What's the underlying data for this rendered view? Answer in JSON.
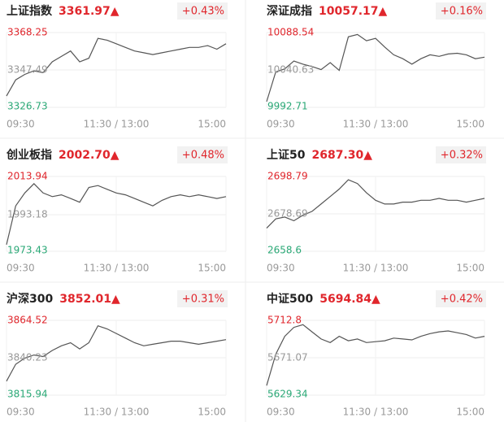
{
  "chart_data": [
    {
      "type": "line",
      "title": "上证指数",
      "price": "3361.97▲",
      "change": "+0.43%",
      "color": "#555555",
      "x": [
        0,
        10,
        20,
        30,
        40,
        50,
        60,
        70,
        80,
        90,
        100,
        110,
        120,
        130,
        140,
        150,
        160,
        170,
        180,
        190,
        200,
        210,
        220,
        230,
        240
      ],
      "values": [
        3333,
        3342,
        3345,
        3347,
        3346,
        3352,
        3355,
        3358,
        3352,
        3354,
        3365,
        3364,
        3362,
        3360,
        3358,
        3357,
        3356,
        3357,
        3358,
        3359,
        3360,
        3360,
        3361,
        3359,
        3362
      ],
      "xlim": [
        0,
        240
      ],
      "xticks": [
        {
          "value": 0,
          "label": "09:30"
        },
        {
          "value": 120,
          "label": "11:30 / 13:00"
        },
        {
          "value": 240,
          "label": "15:00"
        }
      ],
      "ylim": [
        3326.73,
        3368.25
      ],
      "yticks": [
        3326.73,
        3347.49,
        3368.25
      ],
      "grid": true
    },
    {
      "type": "line",
      "title": "深证成指",
      "price": "10057.17▲",
      "change": "+0.16%",
      "color": "#555555",
      "x": [
        0,
        10,
        20,
        30,
        40,
        50,
        60,
        70,
        80,
        90,
        100,
        110,
        120,
        130,
        140,
        150,
        160,
        170,
        180,
        190,
        200,
        210,
        220,
        230,
        240
      ],
      "values": [
        10000,
        10038,
        10042,
        10052,
        10048,
        10045,
        10041,
        10050,
        10040,
        10083,
        10086,
        10078,
        10081,
        10070,
        10060,
        10055,
        10048,
        10055,
        10060,
        10058,
        10061,
        10062,
        10060,
        10055,
        10057
      ],
      "xlim": [
        0,
        240
      ],
      "xticks": [
        {
          "value": 0,
          "label": "09:30"
        },
        {
          "value": 120,
          "label": "11:30 / 13:00"
        },
        {
          "value": 240,
          "label": "15:00"
        }
      ],
      "ylim": [
        9992.71,
        10088.54
      ],
      "yticks": [
        9992.71,
        10040.63,
        10088.54
      ],
      "grid": true
    },
    {
      "type": "line",
      "title": "创业板指",
      "price": "2002.70▲",
      "change": "+0.48%",
      "color": "#555555",
      "x": [
        0,
        10,
        20,
        30,
        40,
        50,
        60,
        70,
        80,
        90,
        100,
        110,
        120,
        130,
        140,
        150,
        160,
        170,
        180,
        190,
        200,
        210,
        220,
        230,
        240
      ],
      "values": [
        1977,
        1998,
        2005,
        2010,
        2005,
        2003,
        2004,
        2002,
        2000,
        2008,
        2009,
        2007,
        2005,
        2004,
        2002,
        2000,
        1998,
        2001,
        2003,
        2004,
        2003,
        2004,
        2003,
        2002,
        2003
      ],
      "xlim": [
        0,
        240
      ],
      "xticks": [
        {
          "value": 0,
          "label": "09:30"
        },
        {
          "value": 120,
          "label": "11:30 / 13:00"
        },
        {
          "value": 240,
          "label": "15:00"
        }
      ],
      "ylim": [
        1973.43,
        2013.94
      ],
      "yticks": [
        1973.43,
        1993.18,
        2013.94
      ],
      "grid": true
    },
    {
      "type": "line",
      "title": "上证50",
      "price": "2687.30▲",
      "change": "+0.32%",
      "color": "#555555",
      "x": [
        0,
        10,
        20,
        30,
        40,
        50,
        60,
        70,
        80,
        90,
        100,
        110,
        120,
        130,
        140,
        150,
        160,
        170,
        180,
        190,
        200,
        210,
        220,
        230,
        240
      ],
      "values": [
        2671,
        2676,
        2677,
        2675,
        2678,
        2680,
        2684,
        2688,
        2692,
        2697,
        2695,
        2690,
        2686,
        2684,
        2684,
        2685,
        2685,
        2686,
        2686,
        2687,
        2686,
        2686,
        2685,
        2686,
        2687
      ],
      "xlim": [
        0,
        240
      ],
      "xticks": [
        {
          "value": 0,
          "label": "09:30"
        },
        {
          "value": 120,
          "label": "11:30 / 13:00"
        },
        {
          "value": 240,
          "label": "15:00"
        }
      ],
      "ylim": [
        2658.6,
        2698.79
      ],
      "yticks": [
        2658.6,
        2678.69,
        2698.79
      ],
      "grid": true
    },
    {
      "type": "line",
      "title": "沪深300",
      "price": "3852.01▲",
      "change": "+0.31%",
      "color": "#555555",
      "x": [
        0,
        10,
        20,
        30,
        40,
        50,
        60,
        70,
        80,
        90,
        100,
        110,
        120,
        130,
        140,
        150,
        160,
        170,
        180,
        190,
        200,
        210,
        220,
        230,
        240
      ],
      "values": [
        3825,
        3836,
        3840,
        3842,
        3841,
        3845,
        3848,
        3850,
        3846,
        3850,
        3861,
        3859,
        3856,
        3853,
        3850,
        3848,
        3849,
        3850,
        3851,
        3851,
        3850,
        3849,
        3850,
        3851,
        3852
      ],
      "xlim": [
        0,
        240
      ],
      "xticks": [
        {
          "value": 0,
          "label": "09:30"
        },
        {
          "value": 120,
          "label": "11:30 / 13:00"
        },
        {
          "value": 240,
          "label": "15:00"
        }
      ],
      "ylim": [
        3815.94,
        3864.52
      ],
      "yticks": [
        3815.94,
        3840.23,
        3864.52
      ],
      "grid": true
    },
    {
      "type": "line",
      "title": "中证500",
      "price": "5694.84▲",
      "change": "+0.42%",
      "color": "#555555",
      "x": [
        0,
        10,
        20,
        30,
        40,
        50,
        60,
        70,
        80,
        90,
        100,
        110,
        120,
        130,
        140,
        150,
        160,
        170,
        180,
        190,
        200,
        210,
        220,
        230,
        240
      ],
      "values": [
        5640,
        5675,
        5695,
        5705,
        5708,
        5700,
        5692,
        5688,
        5695,
        5690,
        5692,
        5688,
        5689,
        5690,
        5693,
        5692,
        5691,
        5695,
        5698,
        5700,
        5701,
        5699,
        5697,
        5693,
        5695
      ],
      "xlim": [
        0,
        240
      ],
      "xticks": [
        {
          "value": 0,
          "label": "09:30"
        },
        {
          "value": 120,
          "label": "11:30 / 13:00"
        },
        {
          "value": 240,
          "label": "15:00"
        }
      ],
      "ylim": [
        5629.34,
        5712.8
      ],
      "yticks": [
        5629.34,
        5671.07,
        5712.8
      ],
      "grid": true
    }
  ]
}
